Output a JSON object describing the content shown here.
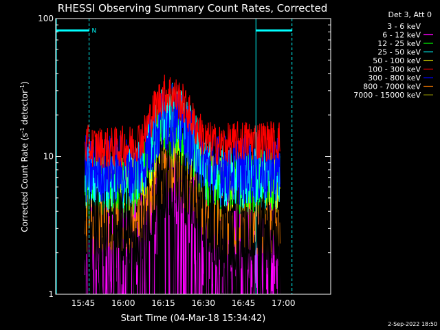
{
  "chart_data": {
    "type": "line",
    "title": "RHESSI Observing Summary Count Rates, Corrected",
    "xlabel": "Start Time (04-Mar-18 15:34:42)",
    "ylabel_main": "Corrected Count Rate (s",
    "ylabel_sup1": "-1",
    "ylabel_mid": " detector",
    "ylabel_sup2": "-1",
    "ylabel_end": ")",
    "yscale": "log",
    "ylim": [
      1,
      100
    ],
    "xlim_minutes": [
      0,
      103
    ],
    "yticks": [
      {
        "value": 1,
        "label": "1"
      },
      {
        "value": 10,
        "label": "10"
      },
      {
        "value": 100,
        "label": "100"
      }
    ],
    "xticks": [
      {
        "minute": 10.3,
        "label": "15:45"
      },
      {
        "minute": 25.3,
        "label": "16:00"
      },
      {
        "minute": 40.3,
        "label": "16:15"
      },
      {
        "minute": 55.3,
        "label": "16:30"
      },
      {
        "minute": 70.3,
        "label": "16:45"
      },
      {
        "minute": 85.3,
        "label": "17:00"
      }
    ],
    "legend_header": "Det 3, Att 0",
    "legend_placement": "right-outside",
    "series": [
      {
        "name": "3 - 6 keV",
        "color": "#000000"
      },
      {
        "name": "6 - 12 keV",
        "color": "#ff00ff"
      },
      {
        "name": "12 - 25 keV",
        "color": "#00ff00"
      },
      {
        "name": "25 - 50 keV",
        "color": "#00ffff"
      },
      {
        "name": "50 - 100 keV",
        "color": "#ffff00"
      },
      {
        "name": "100 - 300 keV",
        "color": "#ff0000"
      },
      {
        "name": "300 - 800 keV",
        "color": "#0000ff"
      },
      {
        "name": "800 - 7000 keV",
        "color": "#ff8000"
      },
      {
        "name": "7000 - 15000 keV",
        "color": "#808000"
      }
    ],
    "data_span_minutes": [
      11,
      84
    ],
    "profiles": {
      "note_free": true,
      "key_times": [
        11,
        20,
        28,
        33,
        37,
        40,
        43,
        47,
        52,
        56,
        62,
        70,
        80,
        84
      ],
      "red": [
        12,
        11.5,
        12,
        14,
        22,
        28,
        29,
        25,
        17,
        13,
        12,
        13,
        13,
        13
      ],
      "blue": [
        8,
        8,
        8,
        9,
        14,
        18,
        19,
        16,
        11,
        8.5,
        8,
        8,
        8,
        8
      ],
      "green": [
        6,
        6,
        6,
        7.5,
        12,
        16,
        17,
        14,
        9,
        6.5,
        6,
        6.5,
        6.5,
        6.5
      ],
      "cyan": [
        7,
        7,
        7,
        8.5,
        14,
        19,
        21,
        18,
        12,
        8,
        7,
        7,
        7,
        7
      ],
      "yellow": [
        6,
        6,
        6.5,
        7,
        10,
        13,
        13,
        11,
        8,
        6.5,
        6,
        6,
        6,
        6
      ],
      "orange": [
        3,
        3,
        3,
        3.5,
        5,
        7,
        8,
        7,
        5,
        3.5,
        3,
        3,
        3,
        3
      ],
      "magenta": [
        2.2,
        2.2,
        2.2,
        2.5,
        4,
        6,
        6.5,
        5.5,
        3.5,
        2.5,
        2.2,
        2.2,
        2.2,
        2.2
      ],
      "black": [
        3,
        3,
        3,
        3.5,
        5,
        7,
        7.5,
        6,
        4.5,
        3.5,
        3,
        3,
        3,
        3
      ]
    },
    "annotations": {
      "night_label": "N",
      "night_periods_minutes": [
        [
          0,
          12.5
        ],
        [
          75,
          88.5
        ]
      ],
      "night_level": 82
    },
    "footer_date": "2-Sep-2022 18:50"
  }
}
